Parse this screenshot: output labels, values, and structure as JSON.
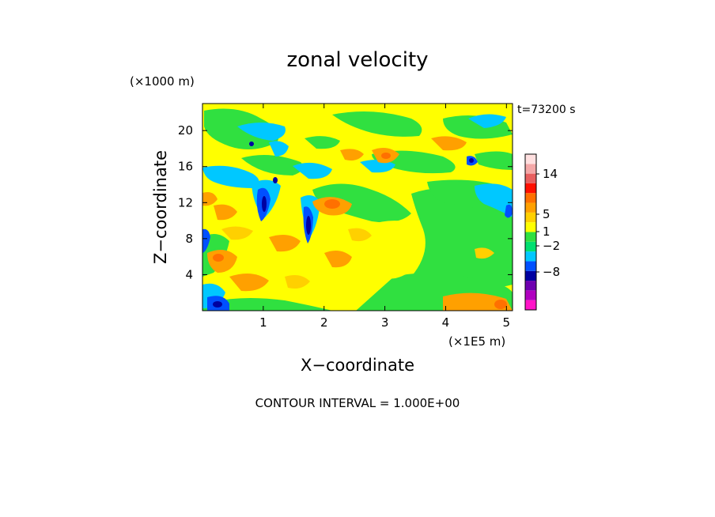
{
  "chart_data": {
    "type": "heatmap",
    "title": "zonal velocity",
    "xlabel": "X−coordinate",
    "ylabel": "Z−coordinate",
    "x_unit": "(×1E5 m)",
    "y_unit": "(×1000 m)",
    "time_label": "t=73200 s",
    "footer": "CONTOUR INTERVAL = 1.000E+00",
    "xlim": [
      0,
      5.1
    ],
    "ylim": [
      0,
      23
    ],
    "x_ticks": [
      1,
      2,
      3,
      4,
      5
    ],
    "y_ticks": [
      4,
      8,
      12,
      16,
      20
    ],
    "grid": false,
    "colorbar": {
      "labels": [
        "14",
        "5",
        "1",
        "−2",
        "−8"
      ],
      "levels": [
        {
          "color": "#ff14c8"
        },
        {
          "color": "#b000c0"
        },
        {
          "color": "#6e00b0"
        },
        {
          "color": "#0000a0"
        },
        {
          "color": "#0050ff"
        },
        {
          "color": "#00c8ff"
        },
        {
          "color": "#00e070"
        },
        {
          "color": "#30e040"
        },
        {
          "color": "#ffff00"
        },
        {
          "color": "#ffd000"
        },
        {
          "color": "#ffa000"
        },
        {
          "color": "#ff7000"
        },
        {
          "color": "#ff1000"
        },
        {
          "color": "#e86060"
        },
        {
          "color": "#f4a8a8"
        },
        {
          "color": "#ffe0e0"
        }
      ]
    },
    "field_regions": [
      {
        "name": "background",
        "value": 0.0,
        "color": "#ffff00"
      },
      {
        "name": "green-block-right",
        "x": [
          3.2,
          5.1
        ],
        "z": [
          1.0,
          13.0
        ],
        "value": -0.5,
        "color": "#30e040"
      },
      {
        "name": "yellow-blob-center",
        "x": [
          2.6,
          3.7
        ],
        "z": [
          4.0,
          10.0
        ],
        "value": 0.2,
        "color": "#ffff00"
      },
      {
        "name": "orange-bands-left",
        "x": [
          0.0,
          2.0
        ],
        "z": [
          2.0,
          18.0
        ],
        "value": 2.0,
        "color": "#ffa000"
      },
      {
        "name": "blue-cores-left",
        "x": [
          0.7,
          1.9
        ],
        "z": [
          7.0,
          20.0
        ],
        "value": -4.0,
        "color": "#0050ff"
      },
      {
        "name": "red-core",
        "x": [
          2.1,
          2.4
        ],
        "z": [
          10.5,
          11.5
        ],
        "value": 5.0,
        "color": "#ff7000"
      }
    ]
  }
}
